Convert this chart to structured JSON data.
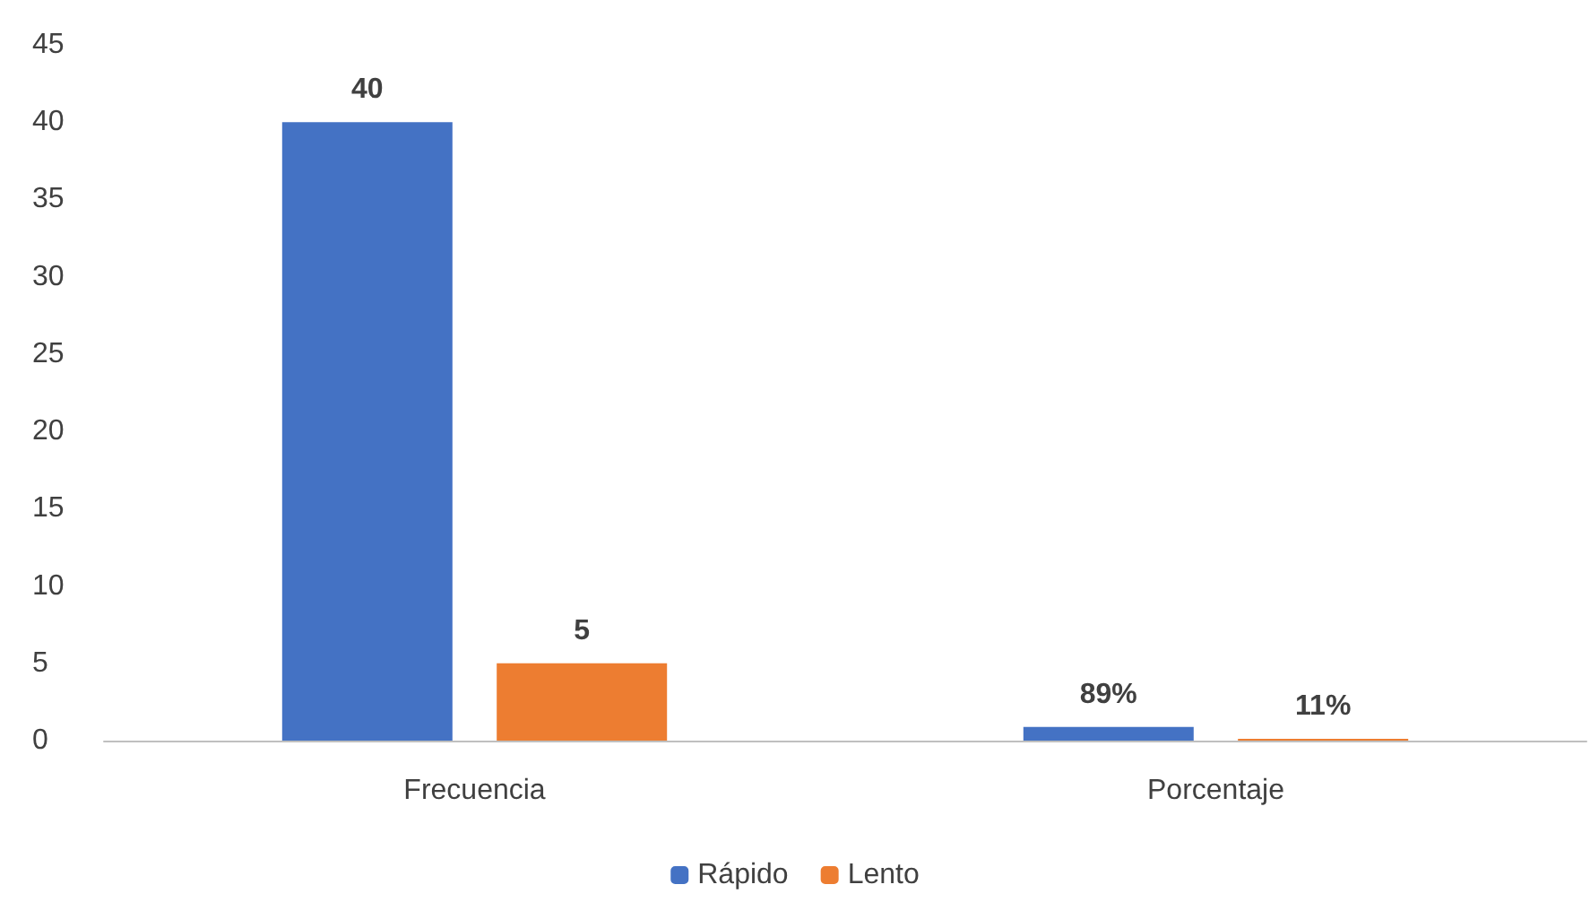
{
  "chart_data": {
    "type": "bar",
    "categories": [
      "Frecuencia",
      "Porcentaje"
    ],
    "series": [
      {
        "name": "Rápido",
        "color": "#4472c4",
        "values": [
          40,
          0.89
        ],
        "value_labels": [
          "40",
          "89%"
        ]
      },
      {
        "name": "Lento",
        "color": "#ed7d31",
        "values": [
          5,
          0.11
        ],
        "value_labels": [
          "5",
          "11%"
        ]
      }
    ],
    "ylim": [
      0,
      45
    ],
    "yticks": [
      0,
      5,
      10,
      15,
      20,
      25,
      30,
      35,
      40,
      45
    ],
    "grid": false,
    "legend": "bottom"
  }
}
